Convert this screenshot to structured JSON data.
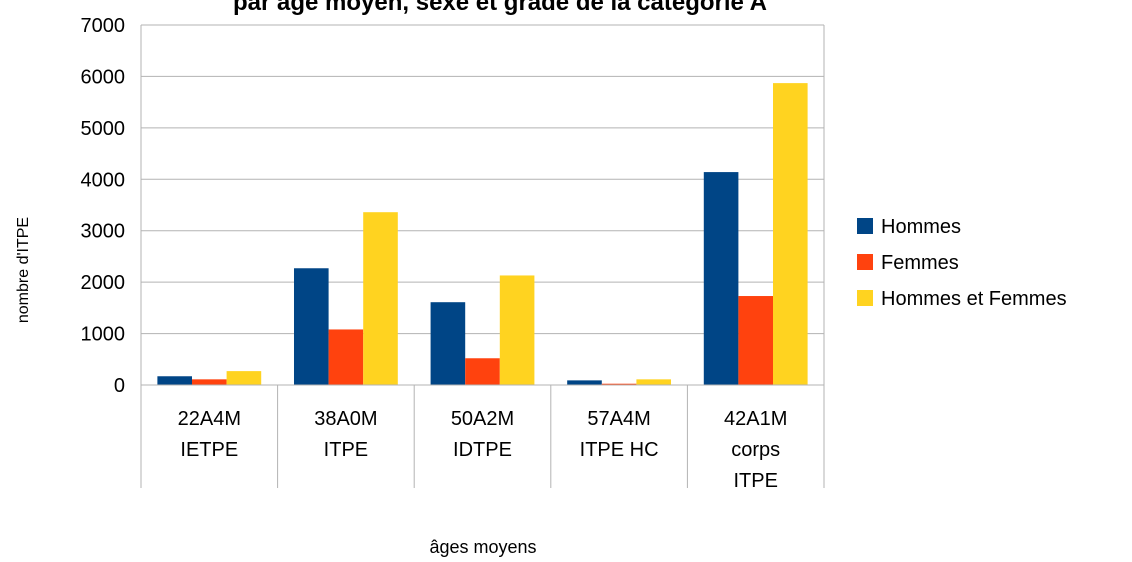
{
  "chart_data": {
    "type": "bar",
    "title": "",
    "title_visible_fragment": "par âge moyen, sexe et grade de la catégorie A",
    "xlabel": "âges moyens",
    "ylabel": "nombre d'ITPE",
    "ylim": [
      0,
      7000
    ],
    "yticks": [
      0,
      1000,
      2000,
      3000,
      4000,
      5000,
      6000,
      7000
    ],
    "grid": true,
    "legend_position": "right",
    "categories": [
      [
        "22A4M",
        "IETPE"
      ],
      [
        "38A0M",
        "ITPE"
      ],
      [
        "50A2M",
        "IDTPE"
      ],
      [
        "57A4M",
        "ITPE HC"
      ],
      [
        "42A1M",
        "corps",
        "ITPE"
      ]
    ],
    "series": [
      {
        "name": "Hommes",
        "color": "#004586",
        "values": [
          170,
          2270,
          1610,
          90,
          4140
        ]
      },
      {
        "name": "Femmes",
        "color": "#ff420e",
        "values": [
          110,
          1080,
          520,
          25,
          1730
        ]
      },
      {
        "name": "Hommes et Femmes",
        "color": "#ffd320",
        "values": [
          270,
          3360,
          2130,
          110,
          5870
        ]
      }
    ]
  }
}
